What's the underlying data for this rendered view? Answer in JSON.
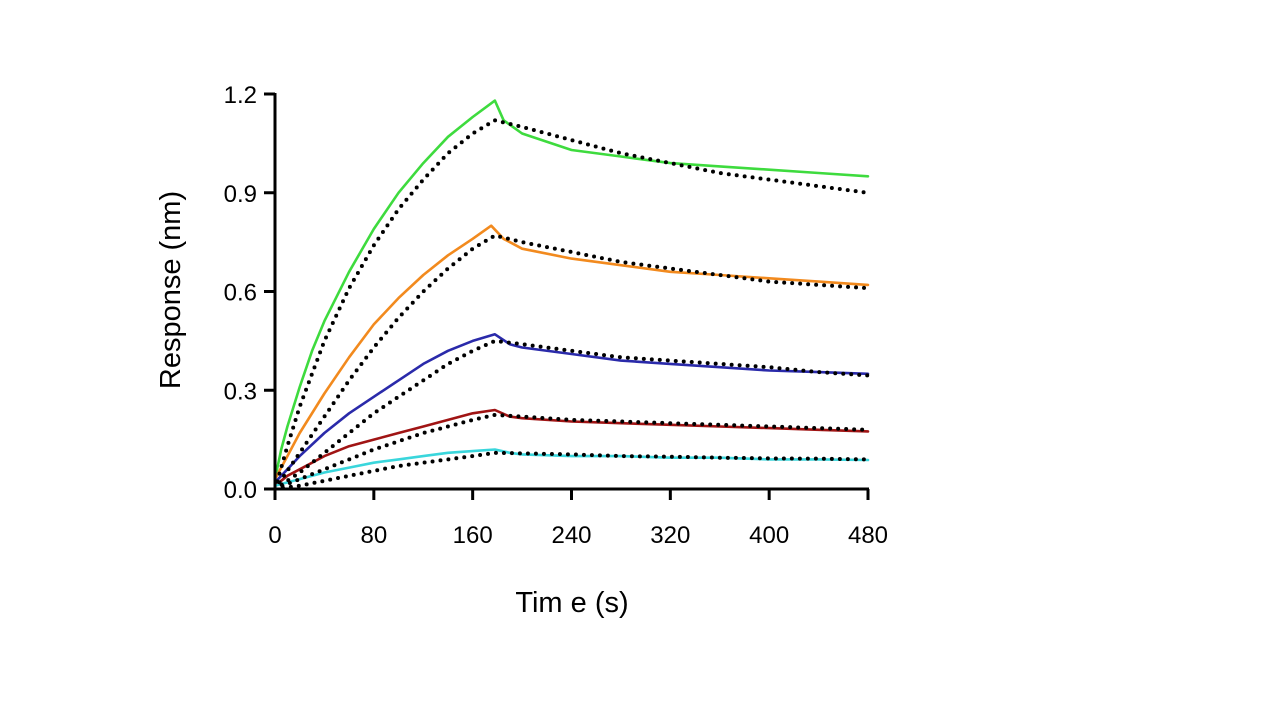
{
  "chart_data": {
    "type": "line",
    "title": "",
    "xlabel": "Tim e (s)",
    "ylabel": "Response (nm)",
    "xlim": [
      0,
      480
    ],
    "ylim": [
      0,
      1.2
    ],
    "x_ticks": [
      0,
      80,
      160,
      240,
      320,
      400,
      480
    ],
    "x_tick_labels": [
      "0",
      "80",
      "160",
      "240",
      "320",
      "400",
      "480"
    ],
    "y_ticks": [
      0,
      0.3,
      0.6,
      0.9,
      1.2
    ],
    "y_tick_labels": [
      "0.0",
      "0.3",
      "0.6",
      "0.9",
      "1.2"
    ],
    "grid": false,
    "legend": "none",
    "series": [
      {
        "name": "Measured (green)",
        "color": "#3edb3e",
        "style": "solid",
        "x": [
          0,
          5,
          10,
          20,
          30,
          40,
          60,
          80,
          100,
          120,
          140,
          160,
          178,
          185,
          200,
          240,
          280,
          320,
          360,
          400,
          440,
          480
        ],
        "y": [
          0.03,
          0.12,
          0.19,
          0.31,
          0.42,
          0.51,
          0.66,
          0.79,
          0.9,
          0.99,
          1.07,
          1.13,
          1.18,
          1.12,
          1.08,
          1.03,
          1.01,
          0.99,
          0.98,
          0.97,
          0.96,
          0.95
        ]
      },
      {
        "name": "Fit (green)",
        "color": "#000000",
        "style": "dotted",
        "x": [
          0,
          10,
          20,
          40,
          60,
          80,
          100,
          120,
          140,
          160,
          178,
          200,
          240,
          280,
          320,
          360,
          400,
          440,
          480
        ],
        "y": [
          0.0,
          0.13,
          0.25,
          0.45,
          0.61,
          0.74,
          0.85,
          0.94,
          1.02,
          1.08,
          1.12,
          1.1,
          1.06,
          1.02,
          0.99,
          0.96,
          0.94,
          0.92,
          0.9
        ]
      },
      {
        "name": "Measured (orange)",
        "color": "#f28a1e",
        "style": "solid",
        "x": [
          0,
          10,
          20,
          40,
          60,
          80,
          100,
          120,
          140,
          160,
          175,
          185,
          200,
          240,
          280,
          320,
          360,
          400,
          440,
          480
        ],
        "y": [
          0.03,
          0.1,
          0.17,
          0.29,
          0.4,
          0.5,
          0.58,
          0.65,
          0.71,
          0.76,
          0.8,
          0.76,
          0.73,
          0.7,
          0.68,
          0.66,
          0.65,
          0.64,
          0.63,
          0.62
        ]
      },
      {
        "name": "Fit (orange)",
        "color": "#000000",
        "style": "dotted",
        "x": [
          0,
          20,
          40,
          60,
          80,
          100,
          120,
          140,
          160,
          178,
          200,
          240,
          280,
          320,
          360,
          400,
          440,
          480
        ],
        "y": [
          0.0,
          0.11,
          0.22,
          0.33,
          0.43,
          0.52,
          0.6,
          0.67,
          0.73,
          0.77,
          0.75,
          0.72,
          0.69,
          0.67,
          0.65,
          0.63,
          0.62,
          0.61
        ]
      },
      {
        "name": "Measured (blue)",
        "color": "#2a2aaa",
        "style": "solid",
        "x": [
          0,
          10,
          20,
          40,
          60,
          80,
          100,
          120,
          140,
          160,
          178,
          190,
          200,
          240,
          280,
          320,
          360,
          400,
          440,
          480
        ],
        "y": [
          0.02,
          0.06,
          0.1,
          0.17,
          0.23,
          0.28,
          0.33,
          0.38,
          0.42,
          0.45,
          0.47,
          0.44,
          0.43,
          0.41,
          0.39,
          0.38,
          0.37,
          0.36,
          0.355,
          0.35
        ]
      },
      {
        "name": "Fit (blue)",
        "color": "#000000",
        "style": "dotted",
        "x": [
          0,
          20,
          40,
          60,
          80,
          100,
          120,
          140,
          160,
          178,
          200,
          240,
          280,
          320,
          360,
          400,
          440,
          480
        ],
        "y": [
          0.0,
          0.05,
          0.11,
          0.17,
          0.23,
          0.28,
          0.33,
          0.38,
          0.42,
          0.45,
          0.44,
          0.42,
          0.4,
          0.39,
          0.38,
          0.37,
          0.355,
          0.345
        ]
      },
      {
        "name": "Measured (dark red)",
        "color": "#a01414",
        "style": "solid",
        "x": [
          0,
          10,
          20,
          40,
          60,
          80,
          100,
          120,
          140,
          160,
          178,
          190,
          200,
          240,
          280,
          320,
          360,
          400,
          440,
          480
        ],
        "y": [
          0.01,
          0.04,
          0.06,
          0.1,
          0.13,
          0.15,
          0.17,
          0.19,
          0.21,
          0.23,
          0.24,
          0.22,
          0.215,
          0.205,
          0.2,
          0.195,
          0.19,
          0.185,
          0.18,
          0.175
        ]
      },
      {
        "name": "Fit (dark red)",
        "color": "#000000",
        "style": "dotted",
        "x": [
          0,
          20,
          40,
          60,
          80,
          100,
          120,
          140,
          160,
          178,
          200,
          240,
          280,
          320,
          360,
          400,
          440,
          480
        ],
        "y": [
          0.0,
          0.03,
          0.06,
          0.09,
          0.12,
          0.145,
          0.17,
          0.19,
          0.21,
          0.225,
          0.22,
          0.21,
          0.205,
          0.2,
          0.195,
          0.19,
          0.185,
          0.18
        ]
      },
      {
        "name": "Measured (cyan)",
        "color": "#3ad6dc",
        "style": "solid",
        "x": [
          0,
          10,
          20,
          40,
          60,
          80,
          100,
          120,
          140,
          160,
          178,
          190,
          200,
          240,
          280,
          320,
          360,
          400,
          440,
          480
        ],
        "y": [
          0.01,
          0.02,
          0.03,
          0.05,
          0.065,
          0.08,
          0.09,
          0.1,
          0.11,
          0.115,
          0.12,
          0.11,
          0.105,
          0.1,
          0.1,
          0.095,
          0.095,
          0.09,
          0.09,
          0.088
        ]
      },
      {
        "name": "Fit (cyan)",
        "color": "#000000",
        "style": "dotted",
        "x": [
          0,
          20,
          40,
          60,
          80,
          100,
          120,
          140,
          160,
          178,
          200,
          240,
          280,
          320,
          360,
          400,
          440,
          480
        ],
        "y": [
          0.0,
          0.01,
          0.025,
          0.04,
          0.055,
          0.07,
          0.08,
          0.09,
          0.1,
          0.11,
          0.108,
          0.105,
          0.1,
          0.098,
          0.095,
          0.093,
          0.092,
          0.09
        ]
      }
    ]
  }
}
